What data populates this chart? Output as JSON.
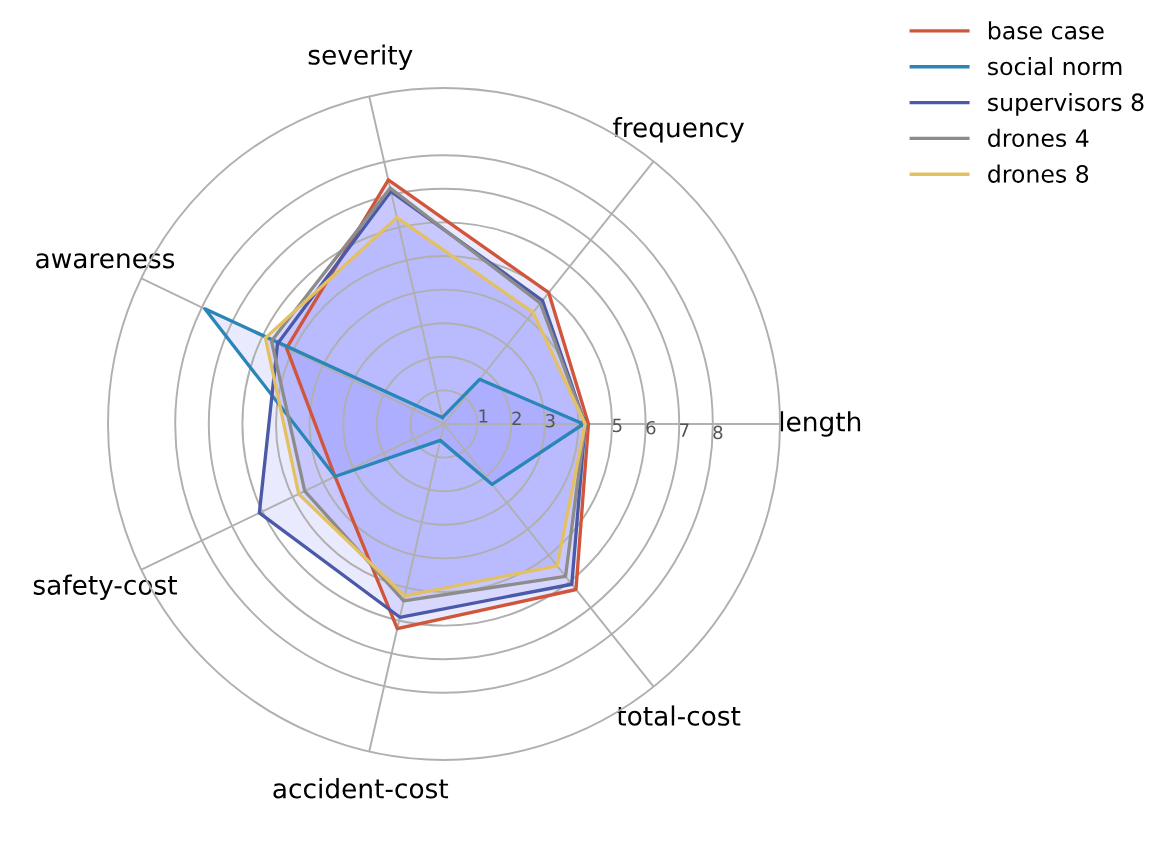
{
  "chart_data": {
    "type": "radar",
    "categories": [
      "severity",
      "frequency",
      "length",
      "total-cost",
      "accident-cost",
      "safety-cost",
      "awareness"
    ],
    "ylim": [
      0,
      10
    ],
    "yticks": [
      1,
      2,
      3,
      4,
      5,
      6,
      7,
      8
    ],
    "grid": true,
    "legend": "top right",
    "marker": "none",
    "line_style": "solid",
    "series": [
      {
        "name": "base case",
        "color": "#d0553a",
        "values": [
          7.45,
          5.0,
          4.3,
          6.3,
          6.25,
          3.6,
          5.2
        ]
      },
      {
        "name": "social norm",
        "color": "#2a86b8",
        "values": [
          0.2,
          1.7,
          4.15,
          2.3,
          0.5,
          3.6,
          7.9
        ]
      },
      {
        "name": "supervisors 8",
        "color": "#4b5aa8",
        "values": [
          7.1,
          4.7,
          4.2,
          6.1,
          5.9,
          6.1,
          5.5
        ]
      },
      {
        "name": "drones 4",
        "color": "#8c8c8c",
        "values": [
          7.2,
          4.6,
          4.2,
          5.8,
          5.4,
          4.6,
          5.7
        ]
      },
      {
        "name": "drones 8",
        "color": "#e3c163",
        "values": [
          6.3,
          4.25,
          4.2,
          5.4,
          5.25,
          4.8,
          5.9
        ]
      }
    ]
  }
}
